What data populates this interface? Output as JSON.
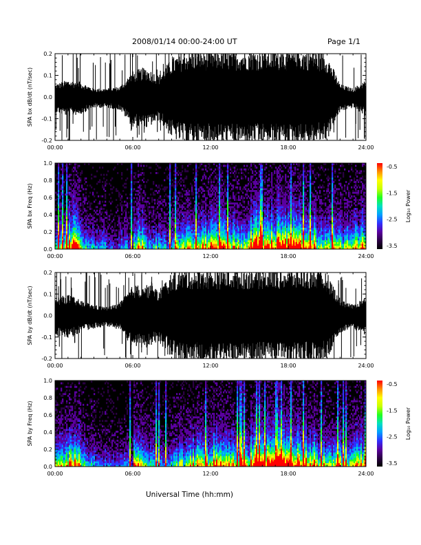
{
  "header": {
    "date_range": "2008/01/14  00:00-24:00 UT",
    "page": "Page 1/1"
  },
  "x_axis": {
    "label": "Universal Time (hh:mm)",
    "ticks": [
      "00:00",
      "06:00",
      "12:00",
      "18:00",
      "24:00"
    ]
  },
  "colorbar": {
    "label": "Log₁₀ Power",
    "ticks": [
      "-0.5",
      "-1.5",
      "-2.5",
      "-3.5"
    ],
    "range": [
      -3.5,
      -0.5
    ],
    "colors": [
      "#000000",
      "#2b0044",
      "#5a00a0",
      "#3030ff",
      "#00a0ff",
      "#00e0c0",
      "#20ff20",
      "#c8ff00",
      "#ffff00",
      "#ff9000",
      "#ff0000"
    ]
  },
  "chart_data": [
    {
      "type": "area",
      "panel": "bx-waveform",
      "title": "",
      "xlabel": "",
      "ylabel": "SPA bx dB/dt (nT/sec)",
      "xlim": [
        0,
        24
      ],
      "ylim": [
        -0.2,
        0.2
      ],
      "yticks": [
        "0.2",
        "0.1",
        "0.0",
        "-0.1",
        "-0.2"
      ],
      "x": [
        0,
        1,
        2,
        3,
        4,
        5,
        6,
        7,
        8,
        9,
        10,
        11,
        12,
        13,
        14,
        15,
        16,
        17,
        18,
        19,
        20,
        21,
        22,
        23,
        24
      ],
      "series": [
        {
          "values": [
            0.06,
            0.08,
            0.07,
            0.04,
            0.04,
            0.05,
            0.12,
            0.14,
            0.1,
            0.18,
            0.22,
            0.22,
            0.22,
            0.22,
            0.22,
            0.22,
            0.22,
            0.22,
            0.22,
            0.22,
            0.22,
            0.2,
            0.06,
            0.04,
            0.08
          ]
        },
        {
          "values": [
            -0.07,
            -0.09,
            -0.08,
            -0.05,
            -0.05,
            -0.06,
            -0.14,
            -0.15,
            -0.11,
            -0.19,
            -0.22,
            -0.22,
            -0.22,
            -0.22,
            -0.22,
            -0.22,
            -0.22,
            -0.22,
            -0.22,
            -0.22,
            -0.22,
            -0.2,
            -0.07,
            -0.05,
            -0.09
          ]
        }
      ]
    },
    {
      "type": "heatmap",
      "panel": "bx-spectrogram",
      "title": "",
      "xlabel": "",
      "ylabel": "SPA bx Freq (Hz)",
      "xlim": [
        0,
        24
      ],
      "ylim": [
        0,
        1
      ],
      "yticks": [
        "1.0",
        "0.8",
        "0.6",
        "0.4",
        "0.2",
        "0.0"
      ],
      "colorbar_label": "Log₁₀ Power",
      "vmin": -3.5,
      "vmax": -0.5,
      "hours": [
        0,
        1,
        2,
        3,
        4,
        5,
        6,
        7,
        8,
        9,
        10,
        11,
        12,
        13,
        14,
        15,
        16,
        17,
        18,
        19,
        20,
        21,
        22,
        23
      ],
      "activity": [
        0.55,
        0.75,
        0.35,
        0.25,
        0.2,
        0.25,
        0.6,
        0.35,
        0.3,
        0.45,
        0.55,
        0.6,
        0.65,
        0.6,
        0.55,
        0.95,
        0.85,
        0.9,
        0.8,
        0.75,
        0.55,
        0.55,
        0.45,
        0.65
      ]
    },
    {
      "type": "area",
      "panel": "by-waveform",
      "title": "",
      "xlabel": "",
      "ylabel": "SPA by dB/dt (nT/sec)",
      "xlim": [
        0,
        24
      ],
      "ylim": [
        -0.2,
        0.2
      ],
      "yticks": [
        "0.2",
        "0.1",
        "0.0",
        "-0.1",
        "-0.2"
      ],
      "x": [
        0,
        1,
        2,
        3,
        4,
        5,
        6,
        7,
        8,
        9,
        10,
        11,
        12,
        13,
        14,
        15,
        16,
        17,
        18,
        19,
        20,
        21,
        22,
        23,
        24
      ],
      "series": [
        {
          "values": [
            0.08,
            0.1,
            0.07,
            0.05,
            0.04,
            0.06,
            0.14,
            0.15,
            0.12,
            0.2,
            0.22,
            0.22,
            0.22,
            0.22,
            0.22,
            0.22,
            0.22,
            0.22,
            0.22,
            0.22,
            0.22,
            0.2,
            0.08,
            0.05,
            0.09
          ]
        },
        {
          "values": [
            -0.1,
            -0.11,
            -0.08,
            -0.06,
            -0.05,
            -0.07,
            -0.16,
            -0.15,
            -0.12,
            -0.2,
            -0.22,
            -0.22,
            -0.22,
            -0.22,
            -0.22,
            -0.22,
            -0.22,
            -0.22,
            -0.22,
            -0.22,
            -0.22,
            -0.2,
            -0.08,
            -0.06,
            -0.1
          ]
        }
      ]
    },
    {
      "type": "heatmap",
      "panel": "by-spectrogram",
      "title": "",
      "xlabel": "Universal Time (hh:mm)",
      "ylabel": "SPA by Freq (Hz)",
      "xlim": [
        0,
        24
      ],
      "ylim": [
        0,
        1
      ],
      "yticks": [
        "1.0",
        "0.8",
        "0.6",
        "0.4",
        "0.2",
        "0.0"
      ],
      "colorbar_label": "Log₁₀ Power",
      "vmin": -3.5,
      "vmax": -0.5,
      "hours": [
        0,
        1,
        2,
        3,
        4,
        5,
        6,
        7,
        8,
        9,
        10,
        11,
        12,
        13,
        14,
        15,
        16,
        17,
        18,
        19,
        20,
        21,
        22,
        23
      ],
      "activity": [
        0.6,
        0.75,
        0.35,
        0.25,
        0.2,
        0.25,
        0.6,
        0.35,
        0.3,
        0.45,
        0.55,
        0.6,
        0.7,
        0.6,
        0.55,
        0.9,
        0.85,
        0.9,
        0.8,
        0.75,
        0.55,
        0.55,
        0.45,
        0.65
      ]
    }
  ]
}
